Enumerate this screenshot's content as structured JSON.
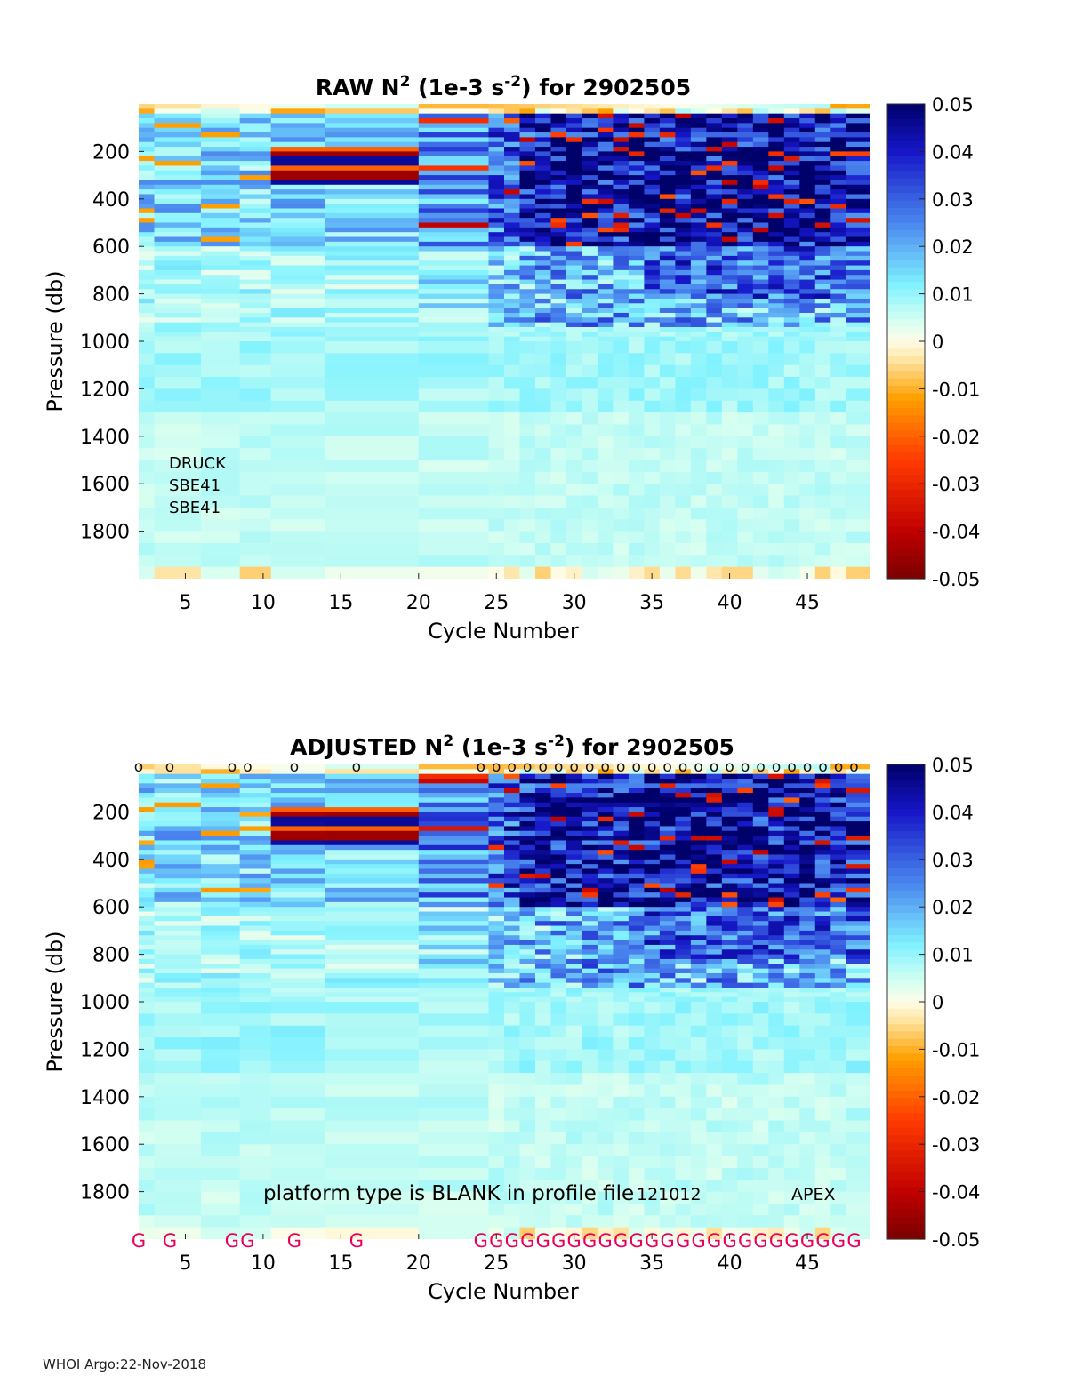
{
  "figure": {
    "footer": "WHOI Argo:22-Nov-2018",
    "float_id": "2902505"
  },
  "colorbar": {
    "ticks": [
      0.05,
      0.04,
      0.03,
      0.02,
      0.01,
      0,
      -0.01,
      -0.02,
      -0.03,
      -0.04,
      -0.05
    ],
    "tick_labels": [
      "0.05",
      "0.04",
      "0.03",
      "0.02",
      "0.01",
      "0",
      "-0.01",
      "-0.02",
      "-0.03",
      "-0.04",
      "-0.05"
    ],
    "range": [
      -0.05,
      0.05
    ],
    "colormap": {
      "stops": [
        -0.05,
        -0.04,
        -0.025,
        -0.012,
        -0.004,
        0,
        0.004,
        0.012,
        0.025,
        0.04,
        0.05
      ],
      "colors": [
        "#7a0000",
        "#c00000",
        "#ff3a00",
        "#ffa000",
        "#ffe3a0",
        "#fffde8",
        "#d8fff0",
        "#80f2ff",
        "#4a86ee",
        "#1616c8",
        "#00006a"
      ]
    }
  },
  "chart_data": [
    {
      "type": "heatmap",
      "panel": "raw",
      "title_prefix": "RAW N",
      "title_sup": "2",
      "title_mid": " (1e-3 s",
      "title_sup2": "-2",
      "title_suffix": ") for 2902505",
      "xlabel": "Cycle Number",
      "ylabel": "Pressure (db)",
      "xlim": [
        2,
        49
      ],
      "ylim": [
        0,
        2000
      ],
      "xticks": [
        5,
        10,
        15,
        20,
        25,
        30,
        35,
        40,
        45
      ],
      "yticks": [
        200,
        400,
        600,
        800,
        1000,
        1200,
        1400,
        1600,
        1800
      ],
      "cycles": [
        2,
        4,
        8,
        9,
        12,
        16,
        24,
        25,
        26,
        27,
        28,
        29,
        30,
        31,
        32,
        33,
        34,
        35,
        36,
        37,
        38,
        39,
        40,
        41,
        42,
        43,
        44,
        45,
        46,
        47,
        48
      ],
      "annotations": [
        "DRUCK",
        "SBE41",
        "SBE41"
      ],
      "value_range": [
        -0.05,
        0.05
      ],
      "description": "Strongly stratified (0.03-0.05) upper 600 db in later cycles, negative bands (-0.02 to -0.05) near 200-350 db for cycles 12-23, values near 0.005-0.01 below 1000 db"
    },
    {
      "type": "heatmap",
      "panel": "adjusted",
      "title_prefix": "ADJUSTED N",
      "title_sup": "2",
      "title_mid": " (1e-3 s",
      "title_sup2": "-2",
      "title_suffix": ") for 2902505",
      "xlabel": "Cycle Number",
      "ylabel": "Pressure (db)",
      "xlim": [
        2,
        49
      ],
      "ylim": [
        0,
        2000
      ],
      "xticks": [
        5,
        10,
        15,
        20,
        25,
        30,
        35,
        40,
        45
      ],
      "yticks": [
        200,
        400,
        600,
        800,
        1000,
        1200,
        1400,
        1600,
        1800
      ],
      "cycles": [
        2,
        4,
        8,
        9,
        12,
        16,
        24,
        25,
        26,
        27,
        28,
        29,
        30,
        31,
        32,
        33,
        34,
        35,
        36,
        37,
        38,
        39,
        40,
        41,
        42,
        43,
        44,
        45,
        46,
        47,
        48
      ],
      "top_markers": [
        "o",
        "o",
        "o",
        "o",
        "o",
        "o",
        "o",
        "o",
        "o",
        "o",
        "o",
        "o",
        "o",
        "o",
        "o",
        "o",
        "o",
        "o",
        "o",
        "o",
        "o",
        "o",
        "o",
        "o",
        "o",
        "o",
        "o",
        "o",
        "o",
        "o",
        "o"
      ],
      "bottom_flags": [
        "G",
        "G",
        "G",
        "G",
        "G",
        "G",
        "G",
        "G",
        "G",
        "G",
        "G",
        "G",
        "G",
        "G",
        "G",
        "G",
        "G",
        "G",
        "G",
        "G",
        "G",
        "G",
        "G",
        "G",
        "G",
        "G",
        "G",
        "G",
        "G",
        "G",
        "G"
      ],
      "flag_color": "#e8005a",
      "annotations": {
        "platform_note": "platform type is BLANK in profile file",
        "firmware": "121012",
        "platform": "APEX"
      },
      "value_range": [
        -0.05,
        0.05
      ]
    }
  ]
}
